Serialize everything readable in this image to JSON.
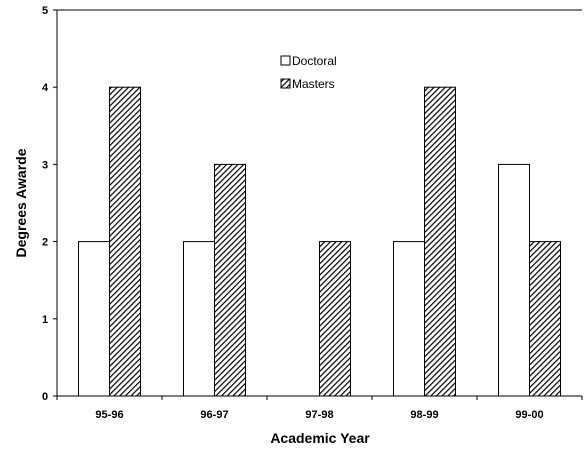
{
  "chart_data": {
    "type": "bar",
    "title": "",
    "xlabel": "Academic Year",
    "ylabel": "Degrees Awarde",
    "categories": [
      "95-96",
      "96-97",
      "97-98",
      "98-99",
      "99-00"
    ],
    "series": [
      {
        "name": "Doctoral",
        "values": [
          2,
          2,
          0,
          2,
          3
        ],
        "fill": "white"
      },
      {
        "name": "Masters",
        "values": [
          4,
          3,
          2,
          4,
          2
        ],
        "fill": "diagonal-hatch"
      }
    ],
    "ylim": [
      0,
      5
    ],
    "yticks": [
      "0",
      "1",
      "2",
      "3",
      "4",
      "5"
    ],
    "grid": false,
    "legend": "top-center"
  }
}
